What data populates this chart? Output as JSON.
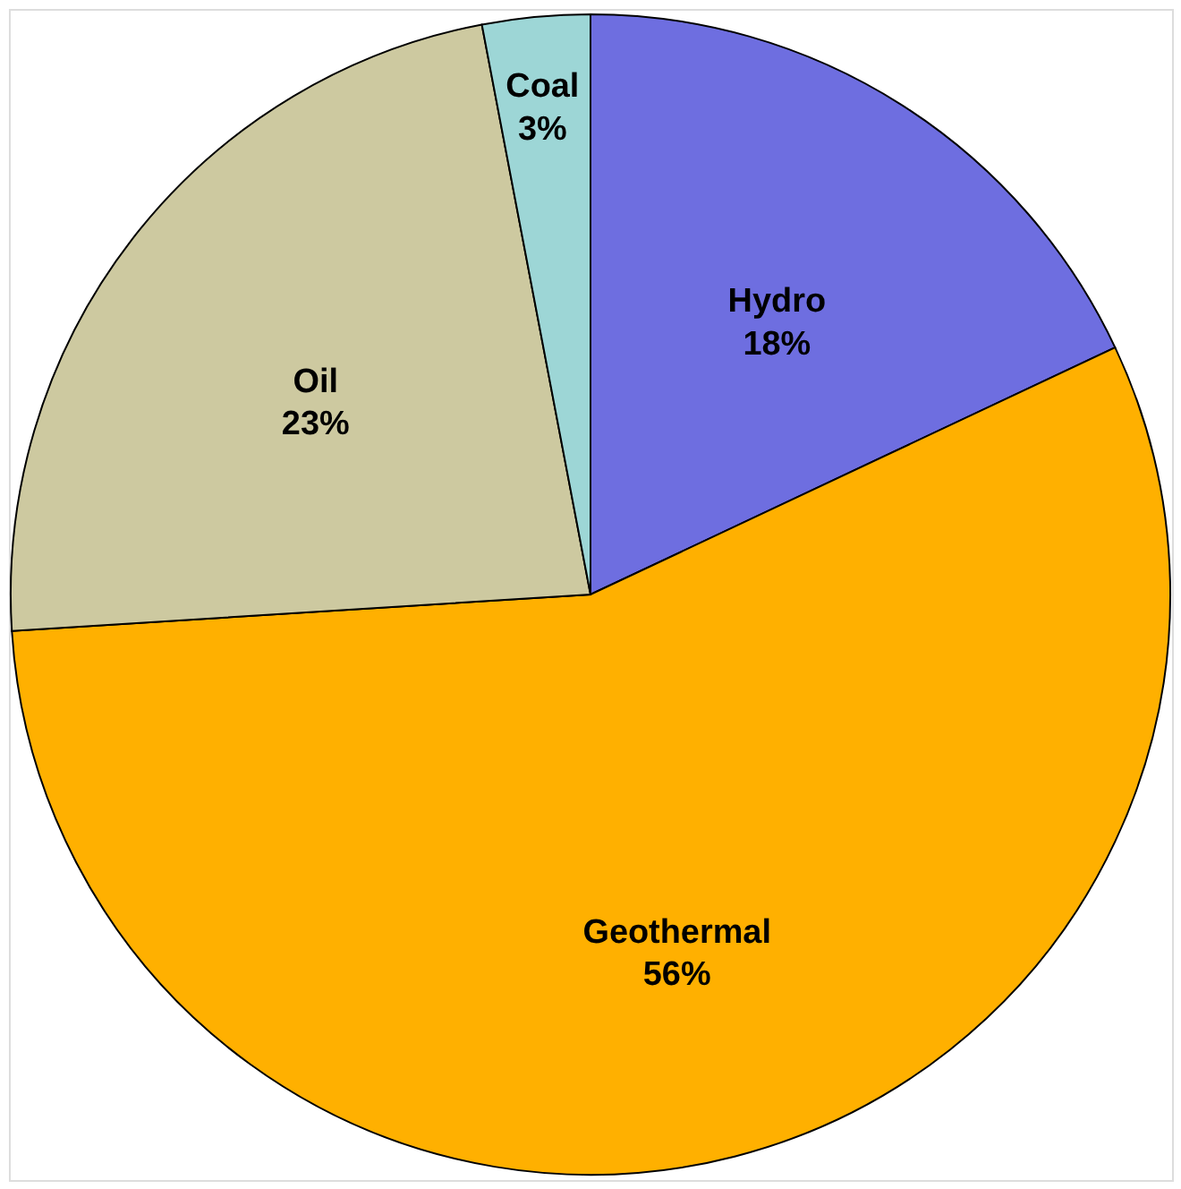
{
  "chart_data": {
    "type": "pie",
    "categories": [
      "Hydro",
      "Geothermal",
      "Oil",
      "Coal"
    ],
    "values": [
      18,
      56,
      23,
      3
    ],
    "value_labels": [
      "18%",
      "56%",
      "23%",
      "3%"
    ],
    "colors": [
      "#6e6ee0",
      "#ffb000",
      "#cdc9a0",
      "#9dd6d6"
    ]
  }
}
